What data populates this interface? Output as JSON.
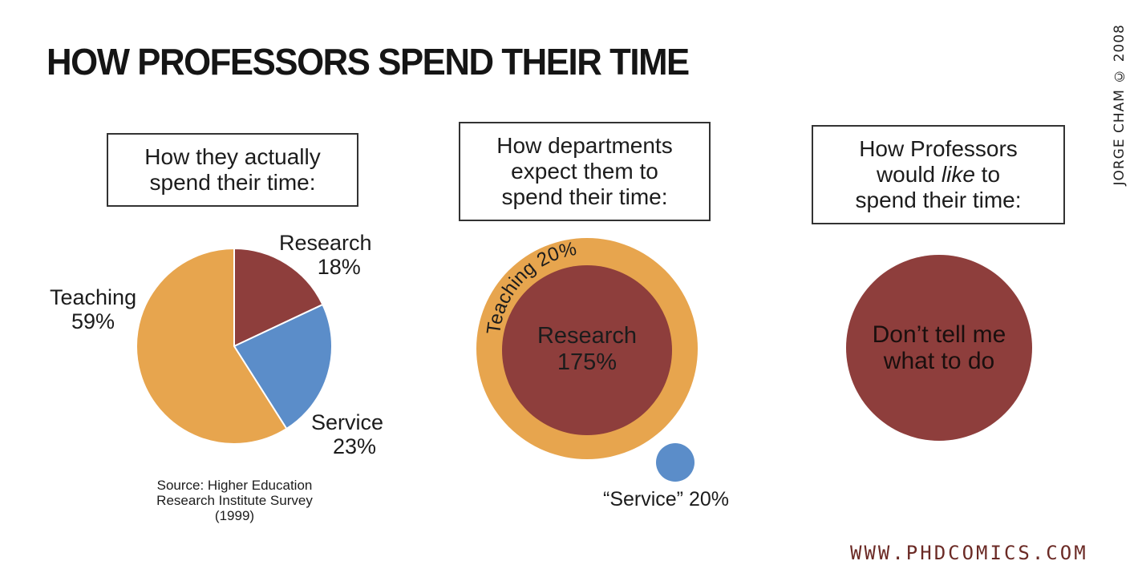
{
  "title": "HOW PROFESSORS SPEND THEIR TIME",
  "credit": "JORGE CHAM © 2008",
  "website": "WWW.PHDCOMICS.COM",
  "colors": {
    "teaching": "#e7a54e",
    "research": "#8e3e3c",
    "service": "#5b8dc9"
  },
  "chart_data": [
    {
      "type": "pie",
      "title_lines": [
        "How they actually",
        "spend their time:"
      ],
      "slices": [
        {
          "name": "Research",
          "value": 18,
          "label": "18%",
          "color": "#8e3e3c"
        },
        {
          "name": "Service",
          "value": 23,
          "label": "23%",
          "color": "#5b8dc9"
        },
        {
          "name": "Teaching",
          "value": 59,
          "label": "59%",
          "color": "#e7a54e"
        }
      ],
      "source_lines": [
        "Source: Higher Education",
        "Research Institute Survey",
        "(1999)"
      ]
    },
    {
      "type": "bubble",
      "title_lines": [
        "How departments",
        "expect them to",
        "spend their time:"
      ],
      "items": [
        {
          "name": "Teaching",
          "value": 20,
          "label": "Teaching 20%",
          "color": "#e7a54e"
        },
        {
          "name": "Research",
          "value": 175,
          "label": "175%",
          "color": "#8e3e3c"
        },
        {
          "name": "Service",
          "value": 20,
          "label": "“Service” 20%",
          "color": "#5b8dc9"
        }
      ]
    },
    {
      "type": "bubble",
      "title_lines_a": [
        "How Professors"
      ],
      "title_line_b_pre": "would ",
      "title_line_b_em": "like",
      "title_line_b_post": " to",
      "title_lines_c": [
        "spend their time:"
      ],
      "items": [
        {
          "name": "Research",
          "label_lines": [
            "Don’t tell me",
            "what to do"
          ],
          "color": "#8e3e3c"
        }
      ]
    }
  ]
}
